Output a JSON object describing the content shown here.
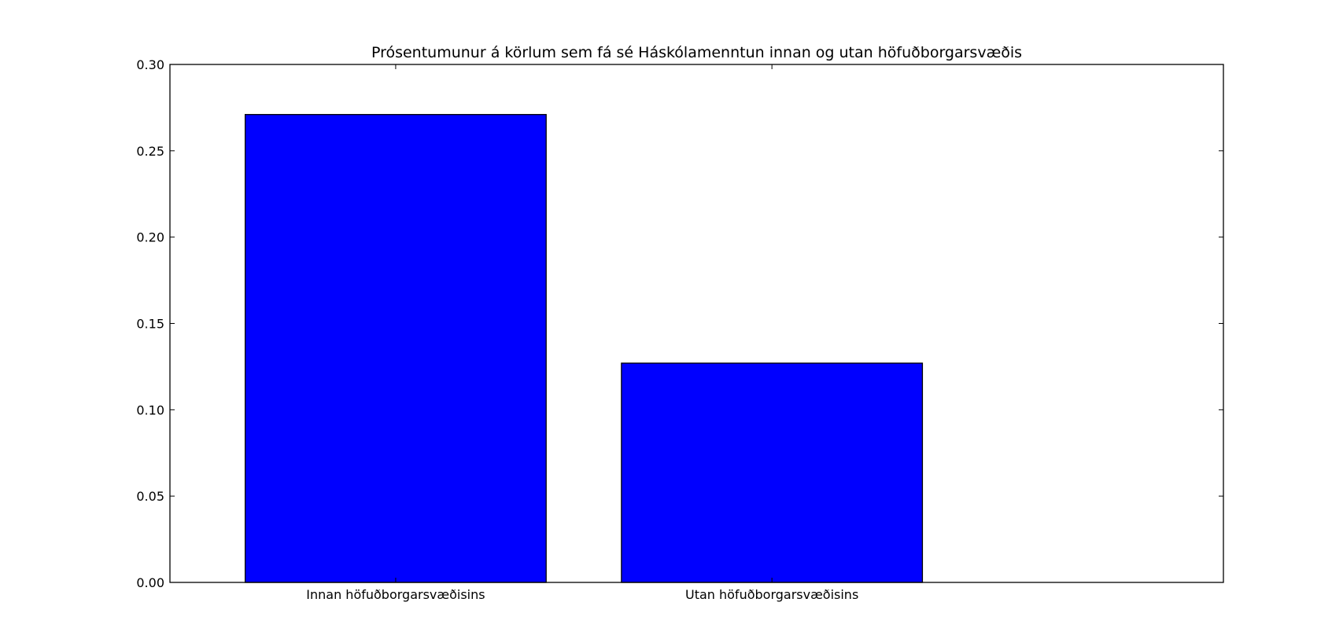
{
  "chart_data": {
    "type": "bar",
    "title": "Prósentumunur á körlum sem fá sé Háskólamenntun innan og utan höfuðborgarsvæðis",
    "xlabel": "",
    "ylabel": "",
    "categories": [
      "Innan höfuðborgarsvæðisins",
      "Utan höfuðborgarsvæðisins"
    ],
    "values": [
      0.271,
      0.127
    ],
    "ylim": [
      0,
      0.3
    ],
    "yticks": [
      "0.00",
      "0.05",
      "0.10",
      "0.15",
      "0.20",
      "0.25",
      "0.30"
    ],
    "bar_color": "#0000ff",
    "grid": false,
    "legend": "none"
  }
}
